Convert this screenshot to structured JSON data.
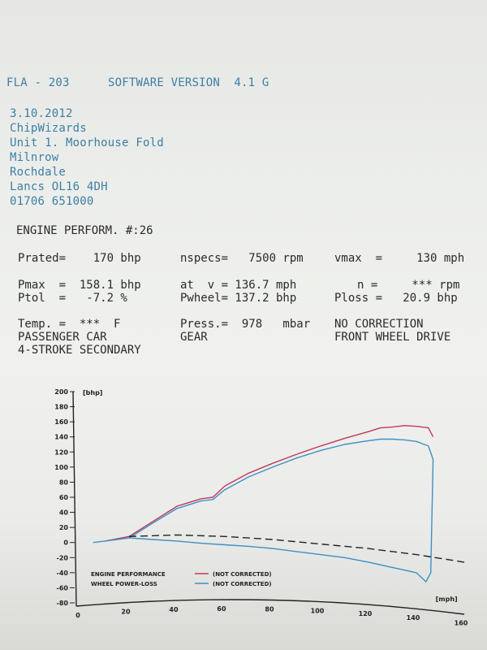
{
  "header": {
    "model": "FLA - 203",
    "software": "SOFTWARE VERSION  4.1 G"
  },
  "address": {
    "date": "3.10.2012",
    "company": "ChipWizards",
    "line1": "Unit 1. Moorhouse Fold",
    "line2": "Milnrow",
    "line3": "Rochdale",
    "line4": "Lancs OL16 4DH",
    "phone": "01706 651000"
  },
  "report": {
    "title": "ENGINE PERFORM. #:26",
    "prated": "Prated=    170 bhp",
    "nspecs": "nspecs=   7500 rpm",
    "vmax": "vmax  =     130 mph",
    "pmax": "Pmax  =  158.1 bhp",
    "ptol": "Ptol  =   -7.2 %",
    "at_v": "at  v = 136.7 mph",
    "pwheel": "Pwheel= 137.2 bhp",
    "n": "n =     *** rpm",
    "ploss": "Ploss =   20.9 bhp",
    "temp": "Temp. =  ***  F",
    "press": "Press.=  978   mbar",
    "correction": "NO CORRECTION",
    "vehicle": "PASSENGER CAR",
    "gear": "GEAR",
    "drive": "FRONT WHEEL DRIVE",
    "engine": "4-STROKE SECONDARY"
  },
  "chart_data": {
    "type": "line",
    "ylabel": "[bhp]",
    "xlabel": "[mph]",
    "xlim": [
      0,
      160
    ],
    "ylim": [
      -80,
      200
    ],
    "xticks": [
      0,
      20,
      40,
      60,
      80,
      100,
      120,
      140,
      160
    ],
    "yticks": [
      200,
      180,
      160,
      140,
      120,
      100,
      80,
      60,
      40,
      20,
      0,
      -20,
      -40,
      -60,
      -80
    ],
    "legend": [
      {
        "label": "ENGINE PERFORMANCE",
        "note": "(NOT CORRECTED)",
        "color": "#c0395a"
      },
      {
        "label": "WHEEL POWER-LOSS",
        "note": "(NOT CORRECTED)",
        "color": "#3f8fc6"
      }
    ],
    "series": [
      {
        "color": "#c0395a",
        "x": [
          10,
          20,
          30,
          40,
          50,
          55,
          60,
          70,
          80,
          90,
          100,
          110,
          120,
          125,
          130,
          135,
          140,
          145,
          147
        ],
        "y": [
          2,
          8,
          28,
          48,
          58,
          60,
          75,
          92,
          105,
          117,
          128,
          138,
          147,
          152,
          153,
          155,
          154,
          152,
          140
        ]
      },
      {
        "color": "#3f8fc6",
        "x": [
          5,
          10,
          15,
          20,
          30,
          40,
          50,
          55,
          60,
          70,
          80,
          90,
          100,
          110,
          120,
          125,
          130,
          135,
          140,
          145,
          147,
          146,
          144,
          140,
          130,
          120,
          110,
          100,
          90,
          80,
          70,
          60,
          50,
          40,
          30,
          20
        ],
        "y": [
          0,
          2,
          4,
          6,
          26,
          45,
          55,
          57,
          70,
          87,
          100,
          112,
          122,
          130,
          135,
          137,
          137,
          136,
          134,
          128,
          110,
          -40,
          -52,
          -40,
          -33,
          -26,
          -20,
          -16,
          -12,
          -8,
          -5,
          -3,
          -1,
          2,
          4,
          6
        ]
      },
      {
        "color": "#222222",
        "dash": true,
        "x": [
          20,
          40,
          60,
          80,
          100,
          120,
          140,
          160
        ],
        "y": [
          8,
          10,
          8,
          4,
          -2,
          -8,
          -16,
          -26
        ]
      }
    ]
  }
}
